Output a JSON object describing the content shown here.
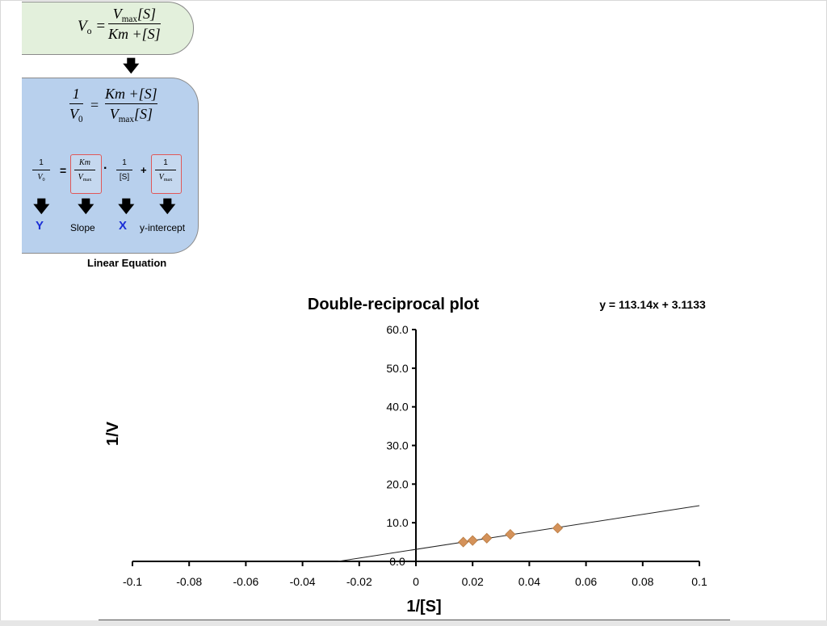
{
  "mm": {
    "lhs": "V",
    "lhs_sub": "o",
    "num_main": "V",
    "num_sub": "max",
    "num_tail": "[S]",
    "den": "Km +[S]"
  },
  "lb": {
    "one": "1",
    "lhs_den": "V",
    "lhs_den_sub": "0",
    "rhs_num": "Km +[S]",
    "rhs_den_main": "V",
    "rhs_den_sub": "max",
    "rhs_den_tail": "[S]"
  },
  "linear": {
    "one": "1",
    "v0": "V",
    "v0_sub": "0",
    "km": "Km",
    "vmax": "V",
    "vmax_sub": "max",
    "s": "[S]",
    "eq": "=",
    "dot": "·",
    "plus": "+",
    "label_y": "Y",
    "label_slope": "Slope",
    "label_x": "X",
    "label_yint": "y-intercept",
    "caption": "Linear Equation"
  },
  "chart_data": {
    "type": "scatter",
    "title": "Double-reciprocal plot",
    "xlabel": "1/[S]",
    "ylabel": "1/V",
    "equation": "y = 113.14x + 3.1133",
    "xlim": [
      -0.1,
      0.1
    ],
    "ylim": [
      0,
      60
    ],
    "x_ticks": [
      "-0.1",
      "-0.08",
      "-0.06",
      "-0.04",
      "-0.02",
      "0",
      "0.02",
      "0.04",
      "0.06",
      "0.08",
      "0.1"
    ],
    "y_ticks": [
      "0.0",
      "10.0",
      "20.0",
      "30.0",
      "40.0",
      "50.0",
      "60.0"
    ],
    "points": [
      {
        "x": 0.0167,
        "y": 5.0
      },
      {
        "x": 0.02,
        "y": 5.4
      },
      {
        "x": 0.025,
        "y": 6.0
      },
      {
        "x": 0.0333,
        "y": 7.0
      },
      {
        "x": 0.05,
        "y": 8.6
      }
    ],
    "trendline": {
      "slope": 113.14,
      "intercept": 3.1133,
      "x_from": -0.0275,
      "x_to": 0.1
    },
    "marker_color": "#d4925a",
    "marker_stroke": "#b87a40",
    "grid": false
  }
}
